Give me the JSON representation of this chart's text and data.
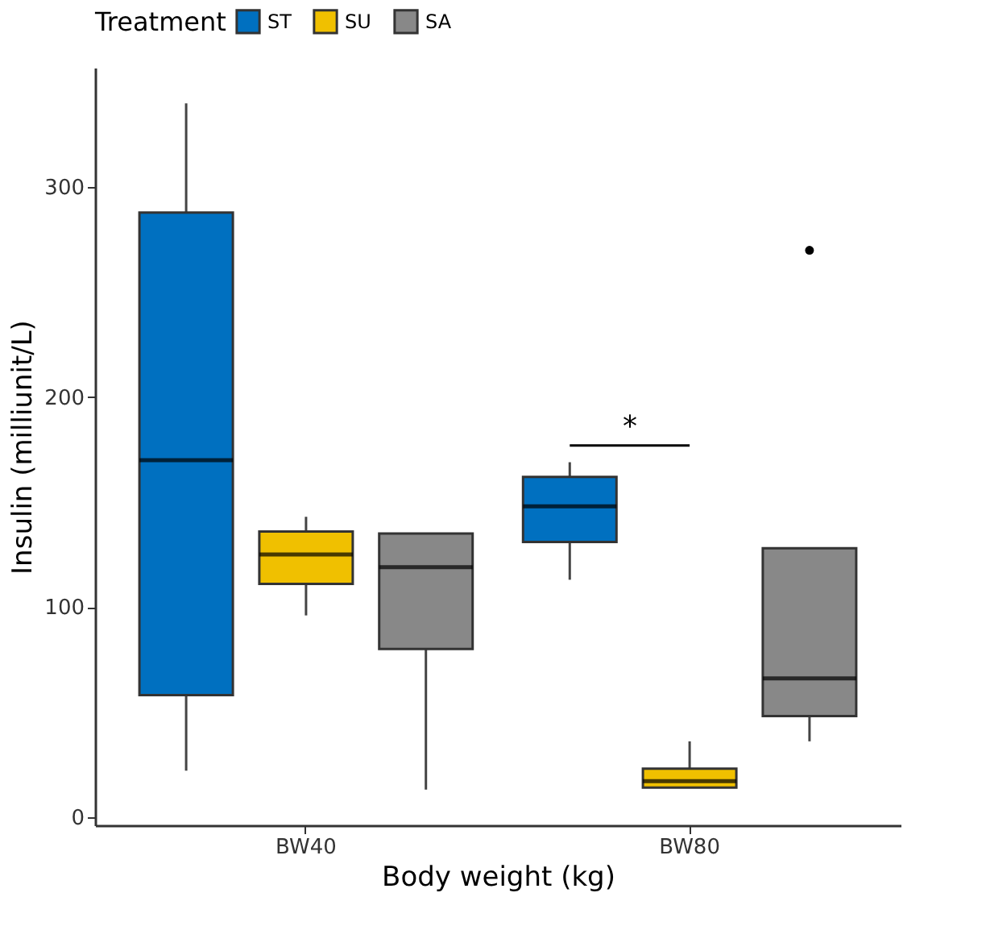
{
  "chart_data": {
    "type": "box",
    "xlabel": "Body weight (kg)",
    "ylabel": "Insulin (milliunit/L)",
    "legend_title": "Treatment",
    "legend": "top",
    "categories": [
      "BW40",
      "BW80"
    ],
    "ylim": [
      -4,
      357
    ],
    "yticks": [
      0,
      100,
      200,
      300
    ],
    "grid": false,
    "series": [
      {
        "name": "ST",
        "color": "#0070c0",
        "boxes": [
          {
            "low": 22,
            "q1": 58,
            "median": 170,
            "q3": 288,
            "high": 340
          },
          {
            "low": 113,
            "q1": 131,
            "median": 148,
            "q3": 162,
            "high": 169
          }
        ]
      },
      {
        "name": "SU",
        "color": "#f0c000",
        "boxes": [
          {
            "low": 96,
            "q1": 111,
            "median": 125,
            "q3": 136,
            "high": 143
          },
          {
            "low": 14,
            "q1": 14,
            "median": 17,
            "q3": 23,
            "high": 36
          }
        ]
      },
      {
        "name": "SA",
        "color": "#888888",
        "boxes": [
          {
            "low": 13,
            "q1": 80,
            "median": 119,
            "q3": 135,
            "high": 135
          },
          {
            "low": 36,
            "q1": 48,
            "median": 66,
            "q3": 128,
            "high": 128,
            "outliers": [
              270
            ]
          }
        ]
      }
    ],
    "annotations": [
      "*"
    ]
  }
}
